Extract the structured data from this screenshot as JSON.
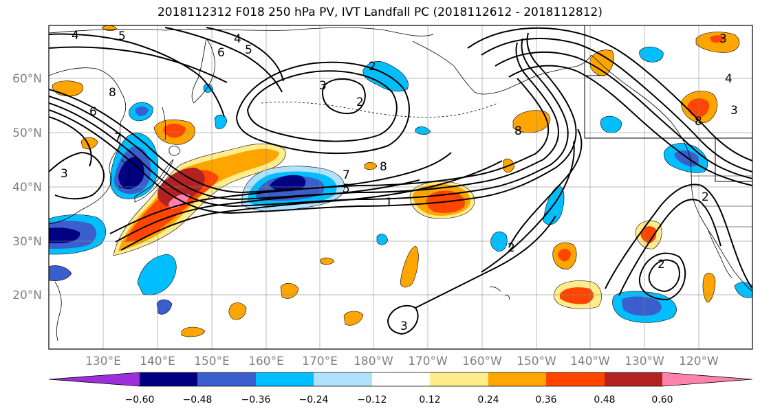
{
  "title": "2018112312 F018 250 hPa PV, IVT Landfall PC (2018112612 - 2018112812)",
  "lat_labels": [
    "60°N",
    "50°N",
    "40°N",
    "30°N",
    "20°N"
  ],
  "lon_labels": [
    "130°E",
    "140°E",
    "150°E",
    "160°E",
    "170°E",
    "180°W",
    "170°W",
    "160°W",
    "150°W",
    "140°W",
    "130°W",
    "120°W"
  ],
  "colorbar": {
    "colors": [
      "#9b30d9",
      "#000080",
      "#3a5fcd",
      "#00bfff",
      "#b0e2ff",
      "#ffffff",
      "#ffec8b",
      "#ffa500",
      "#ff4500",
      "#b22222",
      "#ff82ab"
    ],
    "labels": [
      "−0.60",
      "−0.48",
      "−0.36",
      "−0.24",
      "−0.12",
      "0.12",
      "0.24",
      "0.36",
      "0.48",
      "0.60"
    ]
  },
  "contour_labels": [
    "4",
    "5",
    "6",
    "4",
    "5",
    "8",
    "6",
    "7",
    "3",
    "2",
    "3",
    "2",
    "7",
    "8",
    "5",
    "1",
    "8",
    "2",
    "3",
    "4",
    "8",
    "3",
    "2",
    "2",
    "3"
  ]
}
